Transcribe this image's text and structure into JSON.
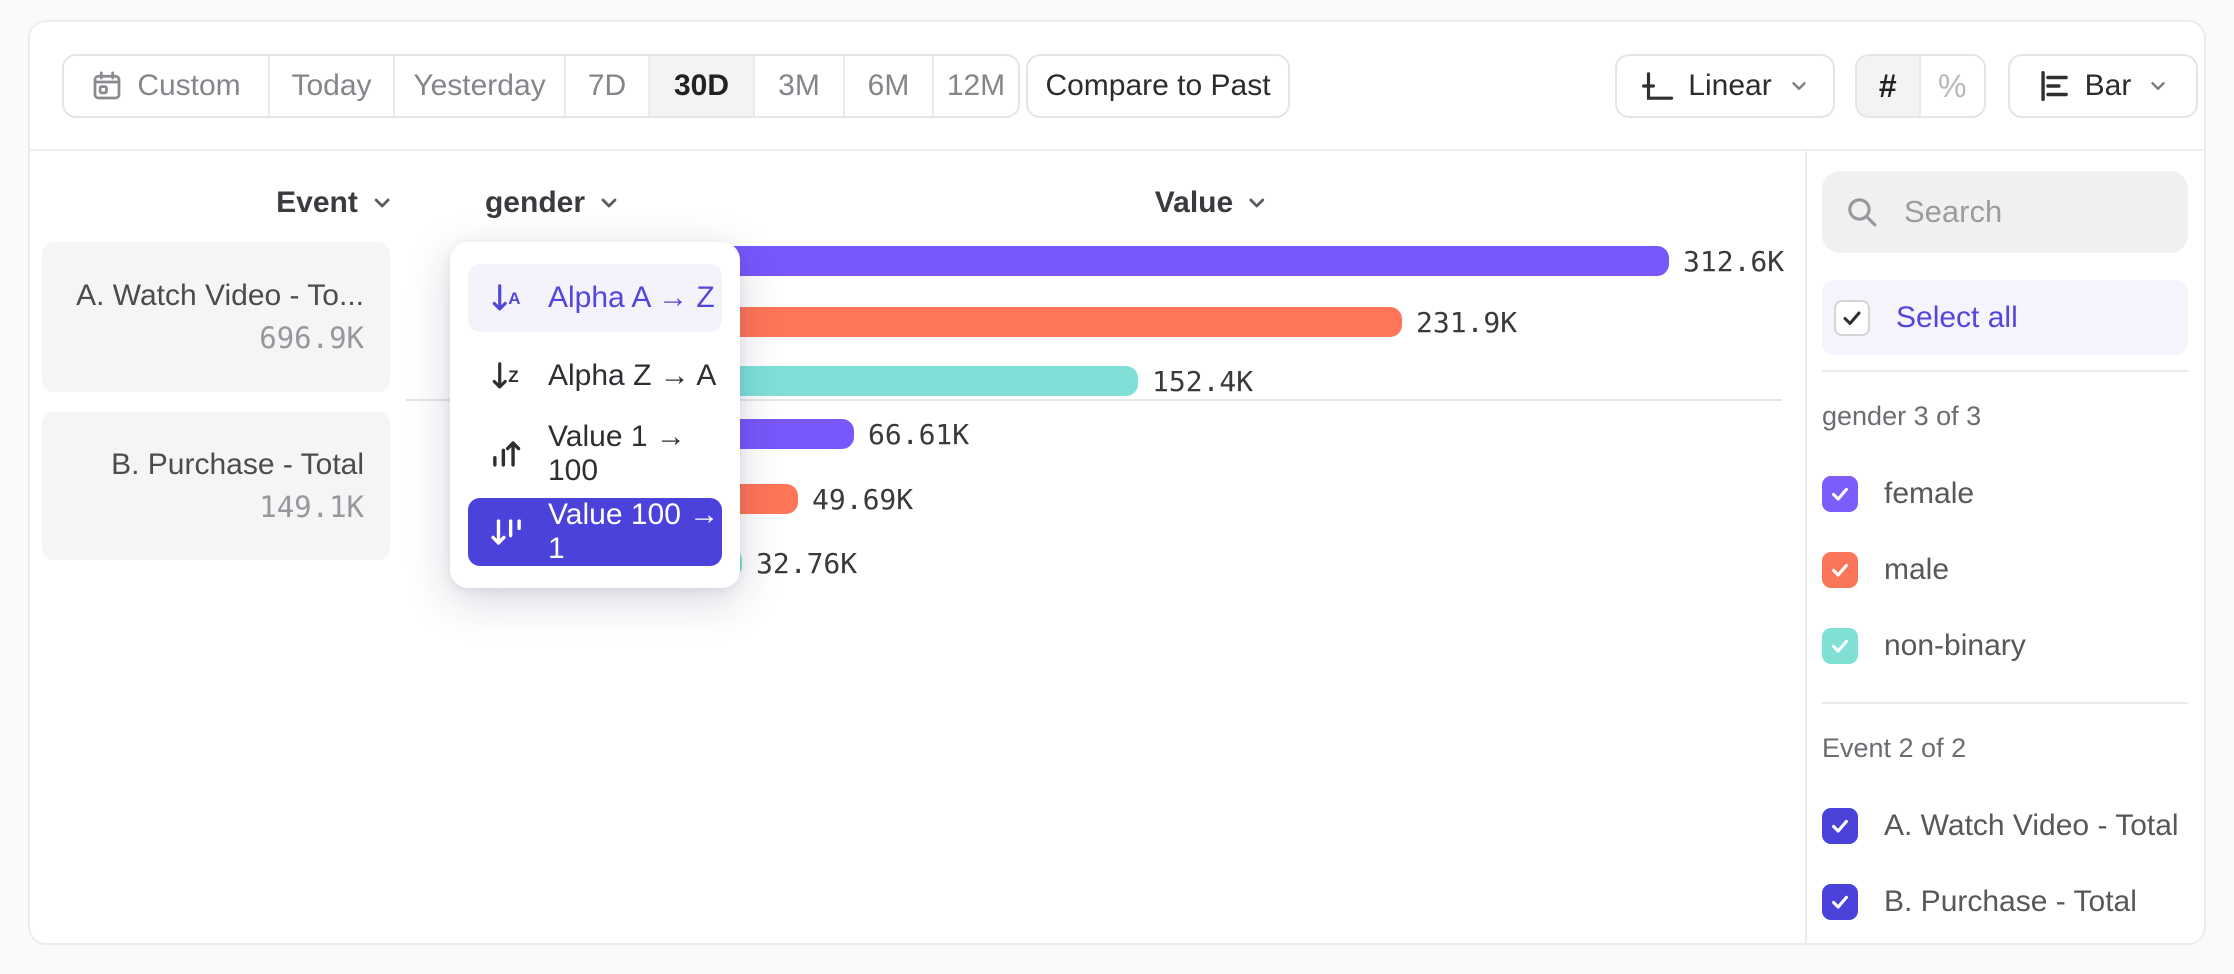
{
  "toolbar": {
    "date_ranges": [
      {
        "label": "Custom",
        "icon": "calendar-icon",
        "selected": false
      },
      {
        "label": "Today",
        "selected": false
      },
      {
        "label": "Yesterday",
        "selected": false
      },
      {
        "label": "7D",
        "selected": false
      },
      {
        "label": "30D",
        "selected": true
      },
      {
        "label": "3M",
        "selected": false
      },
      {
        "label": "6M",
        "selected": false
      },
      {
        "label": "12M",
        "selected": false
      }
    ],
    "compare_label": "Compare to Past",
    "scale_label": "Linear",
    "number_format": [
      {
        "label": "#",
        "selected": true
      },
      {
        "label": "%",
        "selected": false
      }
    ],
    "chart_type_label": "Bar"
  },
  "columns": {
    "event": "Event",
    "breakdown": "gender",
    "value": "Value"
  },
  "events": [
    {
      "name": "A. Watch Video - To...",
      "total": "696.9K"
    },
    {
      "name": "B. Purchase - Total",
      "total": "149.1K"
    }
  ],
  "sort_menu": {
    "items": [
      {
        "label": "Alpha A → Z",
        "icon": "sort-alpha-asc-icon",
        "state": "hover"
      },
      {
        "label": "Alpha Z → A",
        "icon": "sort-alpha-desc-icon",
        "state": "normal"
      },
      {
        "label": "Value 1 → 100",
        "icon": "sort-value-asc-icon",
        "state": "normal"
      },
      {
        "label": "Value 100 → 1",
        "icon": "sort-value-desc-icon",
        "state": "selected"
      }
    ]
  },
  "chart_data": {
    "type": "bar",
    "orientation": "horizontal",
    "value_axis_label": "Value",
    "breakdown": "gender",
    "groups": [
      {
        "event": "A. Watch Video - Total",
        "bars": [
          {
            "category": "female",
            "value": 312600,
            "label": "312.6K",
            "color": "#7857fb"
          },
          {
            "category": "male",
            "value": 231900,
            "label": "231.9K",
            "color": "#ff7557"
          },
          {
            "category": "non-binary",
            "value": 152400,
            "label": "152.4K",
            "color": "#80e0d8"
          }
        ]
      },
      {
        "event": "B. Purchase - Total",
        "bars": [
          {
            "category": "female",
            "value": 66610,
            "label": "66.61K",
            "color": "#7857fb"
          },
          {
            "category": "male",
            "value": 49690,
            "label": "49.69K",
            "color": "#ff7557"
          },
          {
            "category": "non-binary",
            "value": 32760,
            "label": "32.76K",
            "color": "#80e0d8"
          }
        ]
      }
    ]
  },
  "sidebar": {
    "search_placeholder": "Search",
    "select_all_label": "Select all",
    "groups": [
      {
        "title": "gender 3 of 3",
        "items": [
          {
            "label": "female",
            "checked": true,
            "color": "#7c5cfa"
          },
          {
            "label": "male",
            "checked": true,
            "color": "#fb7558"
          },
          {
            "label": "non-binary",
            "checked": true,
            "color": "#80e0d4"
          }
        ]
      },
      {
        "title": "Event 2 of 2",
        "items": [
          {
            "label": "A. Watch Video - Total",
            "checked": true,
            "color": "#4b42dc"
          },
          {
            "label": "B. Purchase - Total",
            "checked": true,
            "color": "#4b42dc"
          }
        ]
      }
    ]
  },
  "colors": {
    "accent": "#4b42dc",
    "menu_highlight_text": "#5246db",
    "bar_purple": "#7857fb",
    "bar_orange": "#ff7557",
    "bar_teal": "#80e0d8"
  }
}
